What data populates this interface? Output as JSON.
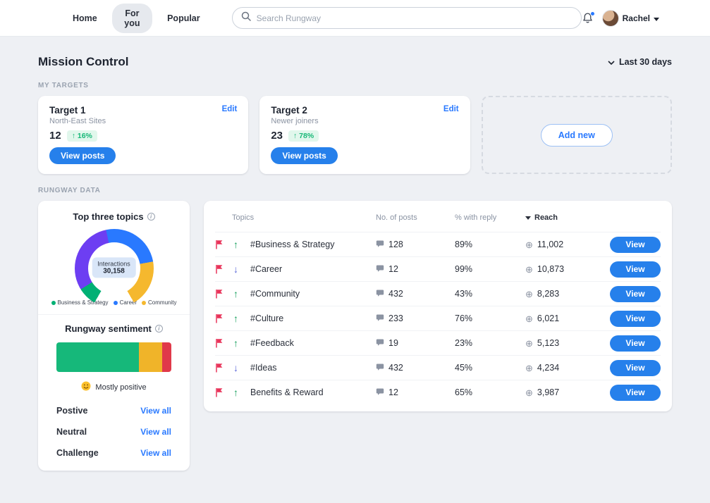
{
  "navbar": {
    "tabs": [
      {
        "label": "Home"
      },
      {
        "label": "For you"
      },
      {
        "label": "Popular"
      }
    ],
    "search_placeholder": "Search Rungway",
    "user_name": "Rachel"
  },
  "page": {
    "title": "Mission Control",
    "date_filter": "Last 30 days",
    "targets_section_label": "MY TARGETS",
    "data_section_label": "RUNGWAY DATA"
  },
  "targets": {
    "add_new_label": "Add new",
    "cards": [
      {
        "title": "Target 1",
        "subtitle": "North-East Sites",
        "count": "12",
        "change": "↑ 16%",
        "edit_label": "Edit",
        "view_label": "View posts"
      },
      {
        "title": "Target 2",
        "subtitle": "Newer joiners",
        "count": "23",
        "change": "↑ 78%",
        "edit_label": "Edit",
        "view_label": "View posts"
      }
    ]
  },
  "rungway_data": {
    "topics_card": {
      "title": "Top three topics",
      "center_label": "Interactions",
      "center_value": "30,158",
      "donut": {
        "start_deg": 210,
        "segments": [
          {
            "name": "business-strategy",
            "color": "#00b074",
            "deg": 28
          },
          {
            "name": "segment-purple",
            "color": "#6d3ef2",
            "deg": 110
          },
          {
            "name": "career",
            "color": "#2979ff",
            "deg": 92
          },
          {
            "name": "community",
            "color": "#f5b82e",
            "deg": 70
          }
        ]
      },
      "legend": [
        {
          "label": "Business & Strategy",
          "color": "#00b074"
        },
        {
          "label": "Career",
          "color": "#2979ff"
        },
        {
          "label": "Community",
          "color": "#f5b82e"
        }
      ]
    },
    "sentiment_card": {
      "title": "Rungway sentiment",
      "summary": "Mostly positive",
      "segments": [
        {
          "name": "positive",
          "color": "#16b87a",
          "pct": 72
        },
        {
          "name": "neutral",
          "color": "#f0b429",
          "pct": 20
        },
        {
          "name": "challenge",
          "color": "#e0394a",
          "pct": 8
        }
      ],
      "rows": [
        {
          "label": "Postive",
          "action": "View all"
        },
        {
          "label": "Neutral",
          "action": "View all"
        },
        {
          "label": "Challenge",
          "action": "View all"
        }
      ]
    },
    "table": {
      "headers": {
        "topics": "Topics",
        "posts": "No. of posts",
        "reply": "% with reply",
        "reach": "Reach"
      },
      "view_label": "View",
      "rows": [
        {
          "topic": "#Business & Strategy",
          "trend": "up",
          "posts": "128",
          "reply": "89%",
          "reach": "11,002"
        },
        {
          "topic": "#Career",
          "trend": "down",
          "posts": "12",
          "reply": "99%",
          "reach": "10,873"
        },
        {
          "topic": "#Community",
          "trend": "up",
          "posts": "432",
          "reply": "43%",
          "reach": "8,283"
        },
        {
          "topic": "#Culture",
          "trend": "up",
          "posts": "233",
          "reply": "76%",
          "reach": "6,021"
        },
        {
          "topic": "#Feedback",
          "trend": "up",
          "posts": "19",
          "reply": "23%",
          "reach": "5,123"
        },
        {
          "topic": "#Ideas",
          "trend": "down",
          "posts": "432",
          "reply": "45%",
          "reach": "4,234"
        },
        {
          "topic": "Benefits & Reward",
          "trend": "up",
          "posts": "12",
          "reply": "65%",
          "reach": "3,987"
        }
      ]
    }
  },
  "colors": {
    "accent_blue": "#2680eb",
    "link_blue": "#2979ff",
    "positive_green": "#17b877",
    "flag_red": "#e8345a",
    "down_indigo": "#5a67d8"
  }
}
